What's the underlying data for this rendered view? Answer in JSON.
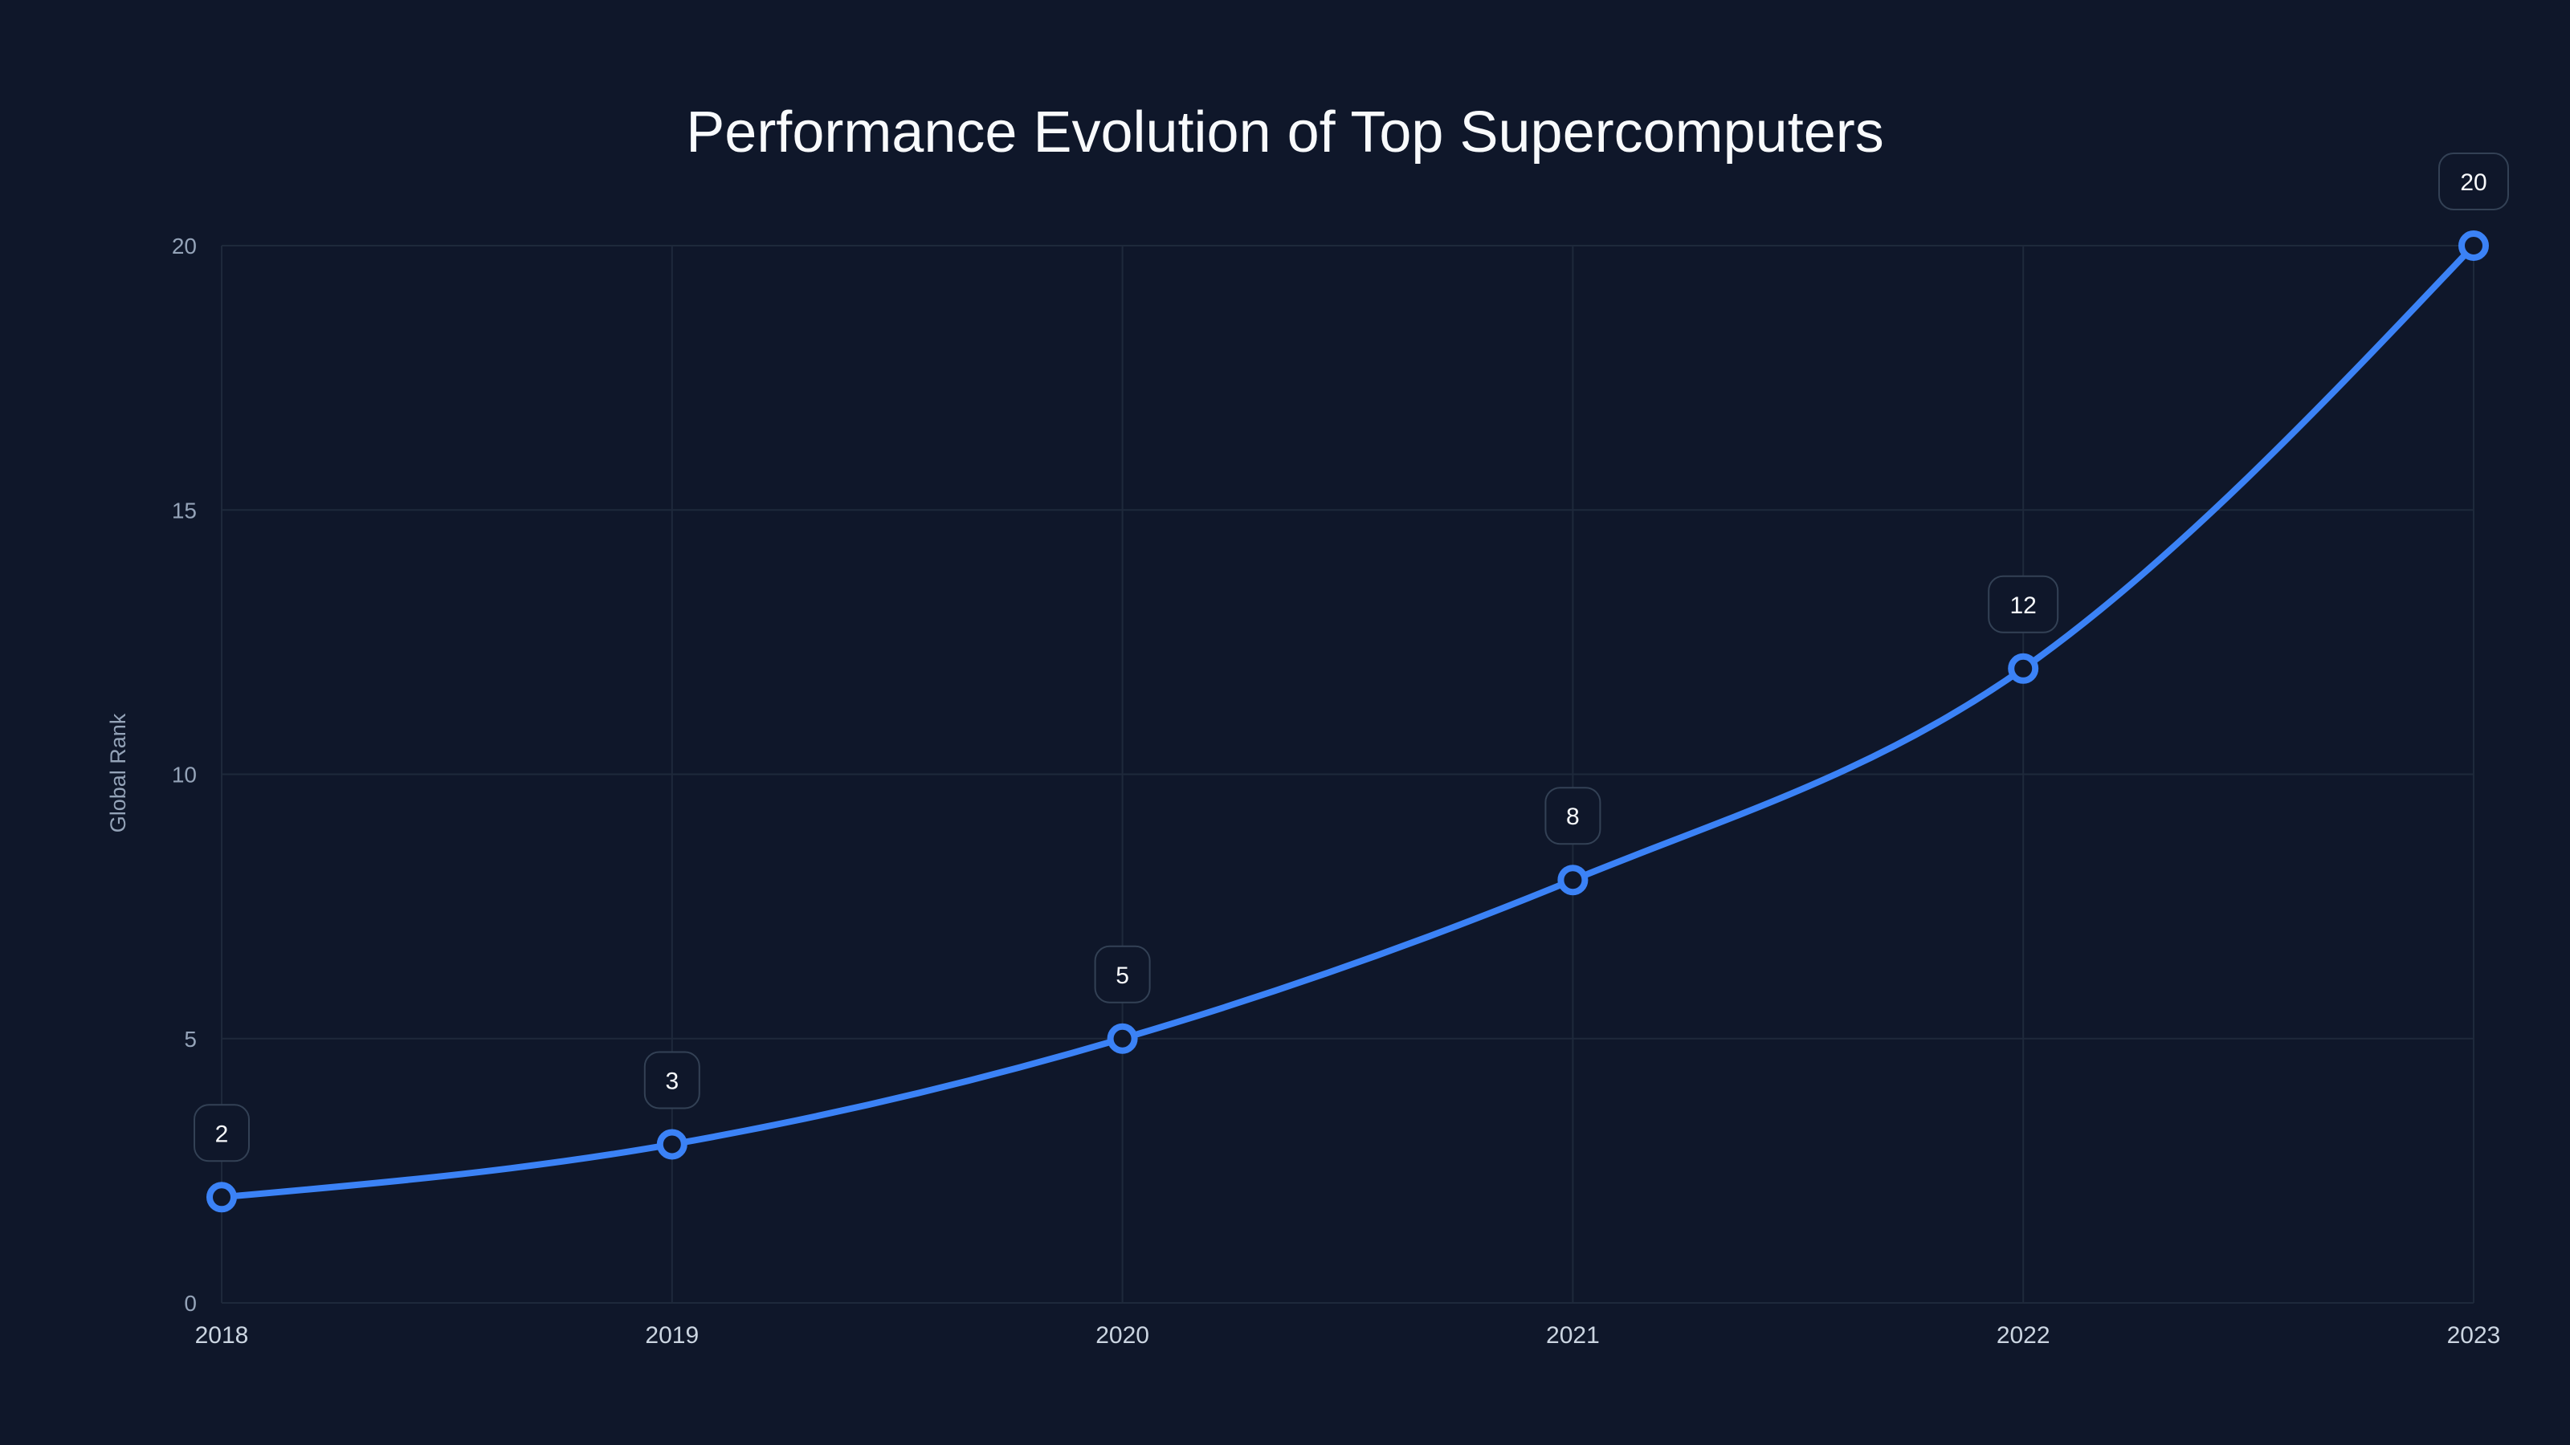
{
  "chart_data": {
    "type": "line",
    "title": "Performance Evolution of Top Supercomputers",
    "xlabel": "",
    "ylabel": "Global Rank",
    "categories": [
      "2018",
      "2019",
      "2020",
      "2021",
      "2022",
      "2023"
    ],
    "series": [
      {
        "name": "Global Rank",
        "values": [
          2,
          3,
          5,
          8,
          12,
          20
        ],
        "color": "#3B82F6"
      }
    ],
    "ylim": [
      0,
      20
    ],
    "yticks": [
      0,
      5,
      10,
      15,
      20
    ],
    "grid": true,
    "legend": null,
    "data_labels": true,
    "curve": "monotone"
  },
  "colors": {
    "background": "#0F172A",
    "grid": "#1E293B",
    "line": "#3B82F6",
    "marker_fill": "#0F172A",
    "label_border": "#334155",
    "title": "#F8FAFC",
    "tick_y": "#94A3B8",
    "tick_x": "#CBD5E1"
  }
}
